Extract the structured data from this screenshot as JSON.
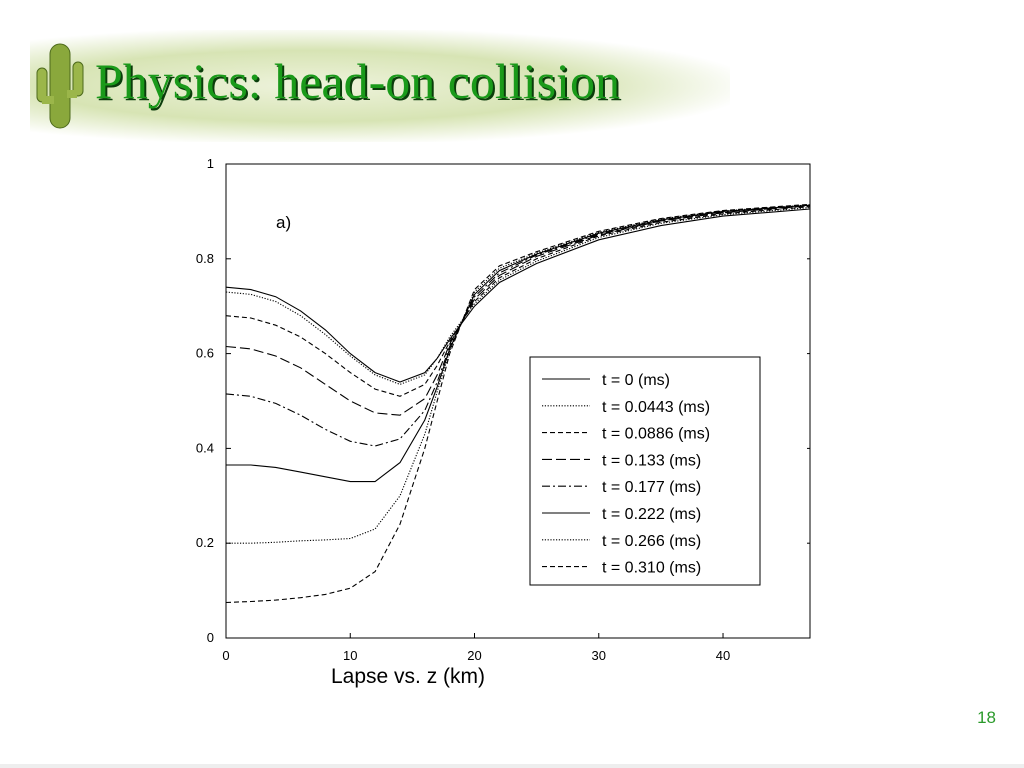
{
  "slide": {
    "title": "Physics: head-on collision",
    "page_number": "18"
  },
  "chart_data": {
    "type": "line",
    "xlabel": "Lapse vs. z (km)",
    "annotation": "a)",
    "x": [
      0,
      2,
      4,
      6,
      8,
      10,
      12,
      14,
      16,
      17,
      18,
      20,
      22,
      25,
      30,
      35,
      40,
      47
    ],
    "xlim": [
      0,
      47
    ],
    "xticks": [
      0,
      10,
      20,
      30,
      40
    ],
    "ylim": [
      0,
      1
    ],
    "yticks": [
      0,
      0.2,
      0.4,
      0.6,
      0.8,
      1
    ],
    "grid": false,
    "legend": "center-right",
    "series": [
      {
        "name": "t = 0 (ms)",
        "color": "#000000",
        "style": "solid",
        "values": [
          0.74,
          0.735,
          0.72,
          0.69,
          0.65,
          0.6,
          0.56,
          0.54,
          0.56,
          0.59,
          0.63,
          0.7,
          0.75,
          0.79,
          0.84,
          0.87,
          0.89,
          0.905
        ]
      },
      {
        "name": "t = 0.0443 (ms)",
        "color": "#000000",
        "style": "dotted",
        "values": [
          0.73,
          0.725,
          0.71,
          0.68,
          0.64,
          0.595,
          0.555,
          0.535,
          0.555,
          0.59,
          0.635,
          0.705,
          0.755,
          0.795,
          0.845,
          0.875,
          0.893,
          0.908
        ]
      },
      {
        "name": "t = 0.0886 (ms)",
        "color": "#000000",
        "style": "dashed",
        "values": [
          0.68,
          0.675,
          0.66,
          0.635,
          0.6,
          0.56,
          0.525,
          0.51,
          0.535,
          0.575,
          0.625,
          0.71,
          0.76,
          0.8,
          0.848,
          0.877,
          0.895,
          0.91
        ]
      },
      {
        "name": "t = 0.133 (ms)",
        "color": "#000000",
        "style": "longdash",
        "values": [
          0.615,
          0.61,
          0.595,
          0.57,
          0.535,
          0.5,
          0.475,
          0.47,
          0.505,
          0.555,
          0.62,
          0.715,
          0.765,
          0.805,
          0.85,
          0.88,
          0.897,
          0.912
        ]
      },
      {
        "name": "t = 0.177 (ms)",
        "color": "#000000",
        "style": "dashdot",
        "values": [
          0.515,
          0.51,
          0.495,
          0.47,
          0.44,
          0.415,
          0.405,
          0.42,
          0.48,
          0.54,
          0.615,
          0.72,
          0.77,
          0.808,
          0.852,
          0.88,
          0.898,
          0.912
        ]
      },
      {
        "name": "t = 0.222 (ms)",
        "color": "#000000",
        "style": "solid",
        "values": [
          0.365,
          0.365,
          0.36,
          0.35,
          0.34,
          0.33,
          0.33,
          0.37,
          0.46,
          0.53,
          0.61,
          0.725,
          0.775,
          0.81,
          0.854,
          0.882,
          0.9,
          0.913
        ]
      },
      {
        "name": "t = 0.266 (ms)",
        "color": "#000000",
        "style": "dotted",
        "values": [
          0.2,
          0.2,
          0.202,
          0.205,
          0.207,
          0.21,
          0.23,
          0.3,
          0.43,
          0.52,
          0.605,
          0.73,
          0.78,
          0.812,
          0.856,
          0.884,
          0.901,
          0.914
        ]
      },
      {
        "name": "t = 0.310 (ms)",
        "color": "#000000",
        "style": "dashed",
        "values": [
          0.075,
          0.077,
          0.08,
          0.085,
          0.092,
          0.105,
          0.14,
          0.24,
          0.4,
          0.5,
          0.6,
          0.735,
          0.785,
          0.815,
          0.858,
          0.885,
          0.902,
          0.915
        ]
      }
    ]
  }
}
